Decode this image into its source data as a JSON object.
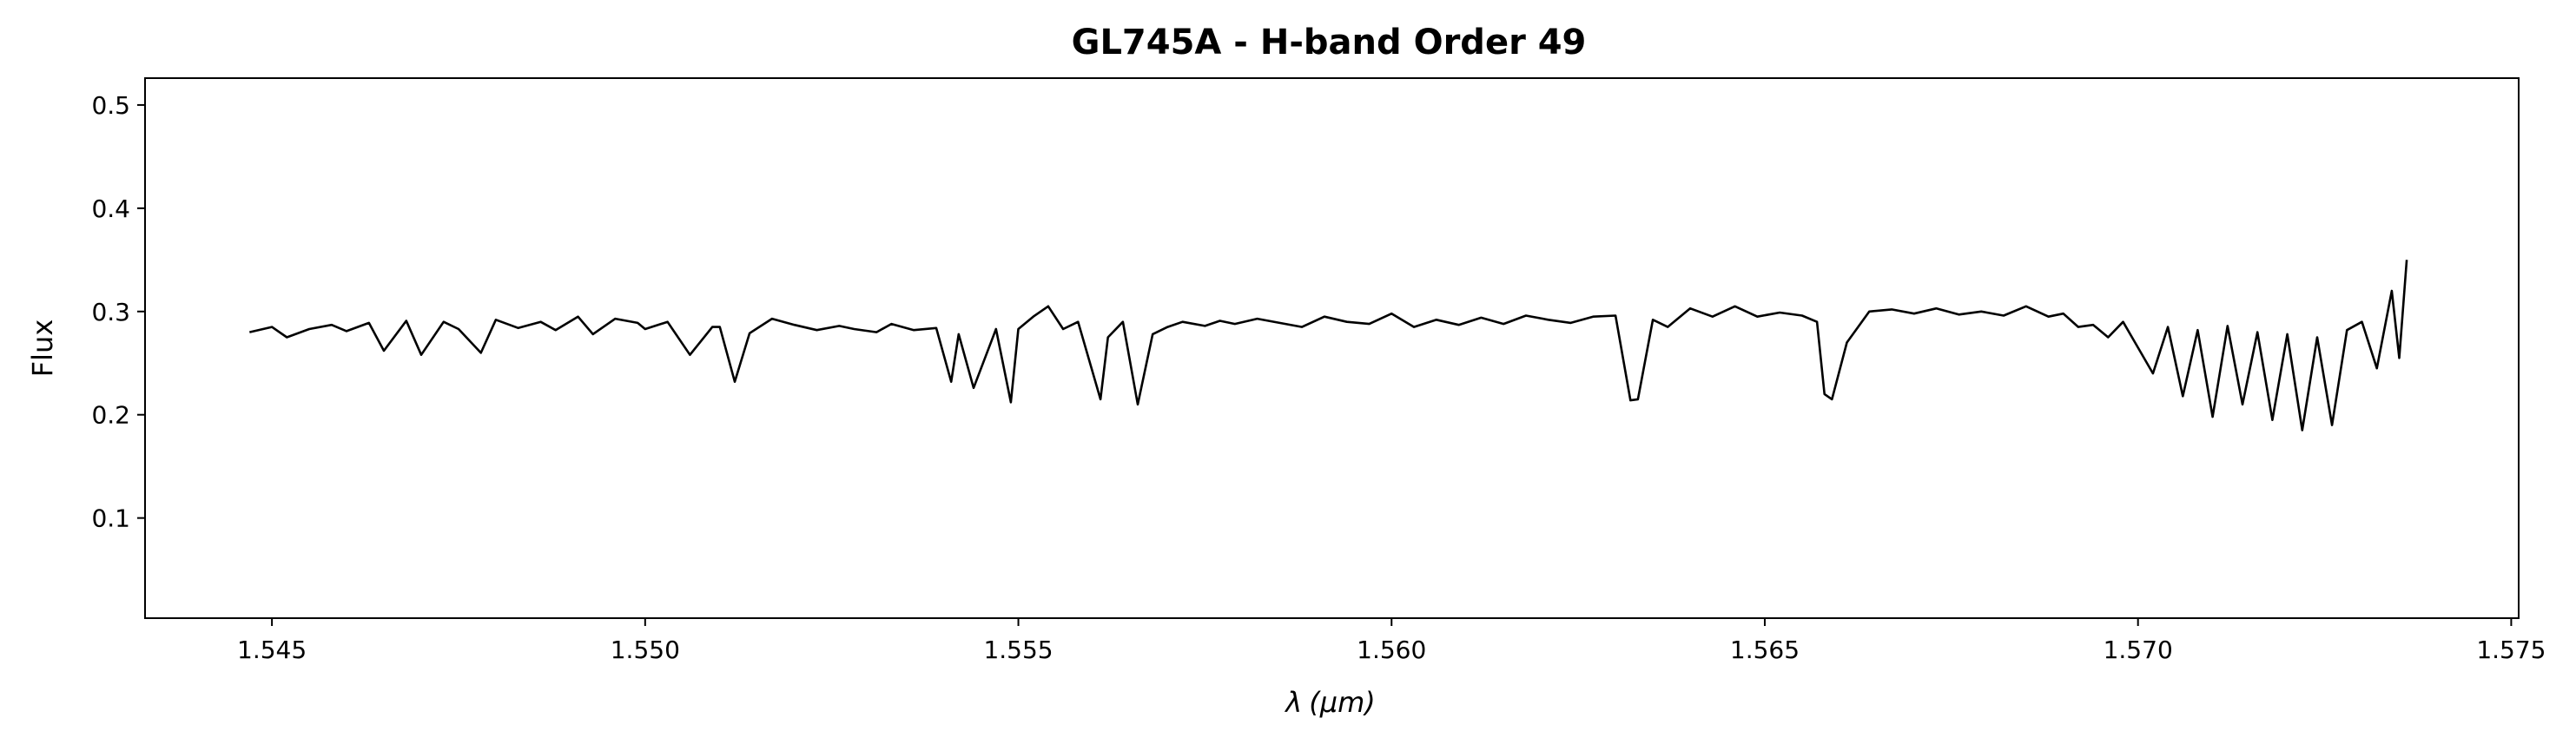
{
  "chart_data": {
    "type": "line",
    "title": "GL745A - H-band Order 49",
    "xlabel_symbol": "λ",
    "xlabel_unit": "(μm)",
    "ylabel": "Flux",
    "xlim": [
      1.5433,
      1.5751
    ],
    "ylim": [
      0.003,
      0.526
    ],
    "xticks": [
      "1.545",
      "1.550",
      "1.555",
      "1.560",
      "1.565",
      "1.570",
      "1.575"
    ],
    "yticks": [
      "0.1",
      "0.2",
      "0.3",
      "0.4",
      "0.5"
    ],
    "grid": false,
    "line_color": "#000000",
    "series": [
      {
        "x": [
          1.5447,
          1.545,
          1.5452,
          1.5455,
          1.5458,
          1.546,
          1.5463,
          1.5465,
          1.5468,
          1.547,
          1.5473,
          1.5475,
          1.5478,
          1.548,
          1.5483,
          1.5486,
          1.5488,
          1.5491,
          1.5493,
          1.5496,
          1.5499,
          1.55,
          1.5503,
          1.5506,
          1.5509,
          1.551,
          1.5512,
          1.5514,
          1.5517,
          1.552,
          1.5523,
          1.5526,
          1.5528,
          1.5531,
          1.5533,
          1.5536,
          1.5539,
          1.5541,
          1.5542,
          1.5544,
          1.5547,
          1.5549,
          1.555,
          1.5552,
          1.5554,
          1.5556,
          1.5558,
          1.5561,
          1.5562,
          1.5564,
          1.5566,
          1.5568,
          1.557,
          1.5572,
          1.5575,
          1.5577,
          1.5579,
          1.5582,
          1.5585,
          1.5588,
          1.5591,
          1.5594,
          1.5597,
          1.56,
          1.5603,
          1.5606,
          1.5609,
          1.5612,
          1.5615,
          1.5618,
          1.5621,
          1.5624,
          1.5627,
          1.563,
          1.5632,
          1.5633,
          1.5635,
          1.5637,
          1.564,
          1.5643,
          1.5646,
          1.5649,
          1.5652,
          1.5655,
          1.5657,
          1.5658,
          1.5659,
          1.5661,
          1.5664,
          1.5667,
          1.567,
          1.5673,
          1.5676,
          1.5679,
          1.5682,
          1.5685,
          1.5688,
          1.569,
          1.5692,
          1.5694,
          1.5696,
          1.5698,
          1.57,
          1.5702,
          1.5704,
          1.5706,
          1.5708,
          1.571,
          1.5712,
          1.5714,
          1.5716,
          1.5718,
          1.572,
          1.5722,
          1.5724,
          1.5726,
          1.5728,
          1.573,
          1.5732,
          1.5734,
          1.5735,
          1.5736
        ],
        "y": [
          0.28,
          0.285,
          0.275,
          0.283,
          0.287,
          0.281,
          0.289,
          0.262,
          0.291,
          0.258,
          0.29,
          0.283,
          0.26,
          0.292,
          0.284,
          0.29,
          0.282,
          0.295,
          0.278,
          0.293,
          0.289,
          0.283,
          0.29,
          0.258,
          0.285,
          0.285,
          0.232,
          0.279,
          0.293,
          0.287,
          0.282,
          0.286,
          0.283,
          0.28,
          0.288,
          0.282,
          0.284,
          0.232,
          0.278,
          0.226,
          0.283,
          0.212,
          0.283,
          0.295,
          0.305,
          0.283,
          0.29,
          0.215,
          0.275,
          0.29,
          0.21,
          0.278,
          0.285,
          0.29,
          0.286,
          0.291,
          0.288,
          0.293,
          0.289,
          0.285,
          0.295,
          0.29,
          0.288,
          0.298,
          0.285,
          0.292,
          0.287,
          0.294,
          0.288,
          0.296,
          0.292,
          0.289,
          0.295,
          0.296,
          0.214,
          0.215,
          0.292,
          0.285,
          0.303,
          0.295,
          0.305,
          0.295,
          0.299,
          0.296,
          0.29,
          0.22,
          0.215,
          0.27,
          0.3,
          0.302,
          0.298,
          0.303,
          0.297,
          0.3,
          0.296,
          0.305,
          0.295,
          0.298,
          0.285,
          0.287,
          0.275,
          0.29,
          0.265,
          0.24,
          0.285,
          0.218,
          0.282,
          0.198,
          0.286,
          0.21,
          0.28,
          0.195,
          0.278,
          0.185,
          0.275,
          0.19,
          0.282,
          0.29,
          0.245,
          0.32,
          0.255,
          0.35
        ]
      }
    ]
  }
}
